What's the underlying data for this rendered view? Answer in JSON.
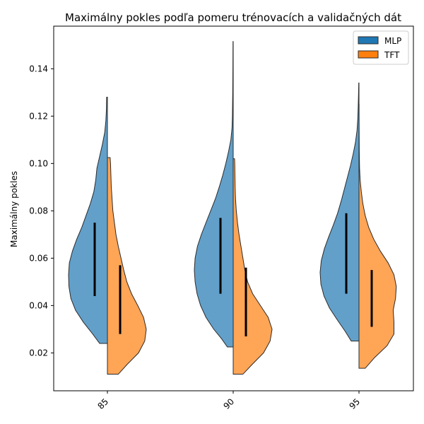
{
  "chart_data": {
    "type": "violin",
    "title": "Maximálny pokles podľa pomeru trénovacích a validačných dát",
    "xlabel": "",
    "ylabel": "Maximálny pokles",
    "categories": [
      "85",
      "90",
      "95"
    ],
    "ylim": [
      0.004,
      0.158
    ],
    "yticks": [
      0.02,
      0.04,
      0.06,
      0.08,
      0.1,
      0.12,
      0.14
    ],
    "ytick_labels": [
      "0.02",
      "0.04",
      "0.06",
      "0.08",
      "0.10",
      "0.12",
      "0.14"
    ],
    "legend": {
      "position": "top-right",
      "entries": [
        "MLP",
        "TFT"
      ]
    },
    "grid": false,
    "series": [
      {
        "name": "MLP",
        "color": "#1f77b4",
        "side": "left",
        "violins": [
          {
            "category": "85",
            "min": 0.024,
            "max": 0.128,
            "iqr": [
              0.044,
              0.075
            ],
            "profile": [
              [
                0.024,
                0.2
              ],
              [
                0.028,
                0.38
              ],
              [
                0.033,
                0.62
              ],
              [
                0.038,
                0.82
              ],
              [
                0.043,
                0.94
              ],
              [
                0.048,
                0.99
              ],
              [
                0.053,
                1.0
              ],
              [
                0.058,
                0.98
              ],
              [
                0.063,
                0.9
              ],
              [
                0.068,
                0.79
              ],
              [
                0.073,
                0.66
              ],
              [
                0.078,
                0.55
              ],
              [
                0.083,
                0.44
              ],
              [
                0.088,
                0.35
              ],
              [
                0.093,
                0.3
              ],
              [
                0.098,
                0.27
              ],
              [
                0.103,
                0.2
              ],
              [
                0.108,
                0.13
              ],
              [
                0.113,
                0.07
              ],
              [
                0.118,
                0.04
              ],
              [
                0.123,
                0.025
              ],
              [
                0.128,
                0.02
              ]
            ]
          },
          {
            "category": "90",
            "min": 0.0225,
            "max": 0.1515,
            "iqr": [
              0.045,
              0.077
            ],
            "profile": [
              [
                0.0225,
                0.15
              ],
              [
                0.026,
                0.3
              ],
              [
                0.03,
                0.5
              ],
              [
                0.035,
                0.7
              ],
              [
                0.04,
                0.84
              ],
              [
                0.045,
                0.93
              ],
              [
                0.05,
                0.98
              ],
              [
                0.055,
                1.0
              ],
              [
                0.06,
                0.98
              ],
              [
                0.065,
                0.92
              ],
              [
                0.07,
                0.82
              ],
              [
                0.075,
                0.7
              ],
              [
                0.08,
                0.58
              ],
              [
                0.085,
                0.46
              ],
              [
                0.09,
                0.36
              ],
              [
                0.095,
                0.27
              ],
              [
                0.1,
                0.19
              ],
              [
                0.105,
                0.12
              ],
              [
                0.11,
                0.06
              ],
              [
                0.115,
                0.03
              ],
              [
                0.12,
                0.02
              ],
              [
                0.13,
                0.012
              ],
              [
                0.14,
                0.008
              ],
              [
                0.1515,
                0.005
              ]
            ]
          },
          {
            "category": "95",
            "min": 0.025,
            "max": 0.134,
            "iqr": [
              0.045,
              0.079
            ],
            "profile": [
              [
                0.025,
                0.2
              ],
              [
                0.029,
                0.35
              ],
              [
                0.034,
                0.56
              ],
              [
                0.039,
                0.76
              ],
              [
                0.044,
                0.9
              ],
              [
                0.049,
                0.98
              ],
              [
                0.054,
                1.0
              ],
              [
                0.059,
                0.97
              ],
              [
                0.064,
                0.89
              ],
              [
                0.069,
                0.78
              ],
              [
                0.074,
                0.66
              ],
              [
                0.079,
                0.55
              ],
              [
                0.084,
                0.46
              ],
              [
                0.089,
                0.38
              ],
              [
                0.094,
                0.3
              ],
              [
                0.099,
                0.22
              ],
              [
                0.104,
                0.15
              ],
              [
                0.109,
                0.09
              ],
              [
                0.114,
                0.05
              ],
              [
                0.119,
                0.03
              ],
              [
                0.124,
                0.02
              ],
              [
                0.129,
                0.012
              ],
              [
                0.134,
                0.006
              ]
            ]
          }
        ]
      },
      {
        "name": "TFT",
        "color": "#ff7f0e",
        "side": "right",
        "violins": [
          {
            "category": "85",
            "min": 0.011,
            "max": 0.1025,
            "iqr": [
              0.028,
              0.057
            ],
            "profile": [
              [
                0.011,
                0.28
              ],
              [
                0.015,
                0.5
              ],
              [
                0.02,
                0.8
              ],
              [
                0.025,
                0.96
              ],
              [
                0.03,
                1.0
              ],
              [
                0.035,
                0.93
              ],
              [
                0.04,
                0.78
              ],
              [
                0.045,
                0.62
              ],
              [
                0.05,
                0.5
              ],
              [
                0.055,
                0.42
              ],
              [
                0.06,
                0.35
              ],
              [
                0.065,
                0.28
              ],
              [
                0.07,
                0.22
              ],
              [
                0.075,
                0.18
              ],
              [
                0.08,
                0.14
              ],
              [
                0.085,
                0.12
              ],
              [
                0.09,
                0.1
              ],
              [
                0.095,
                0.09
              ],
              [
                0.1,
                0.08
              ],
              [
                0.1025,
                0.07
              ]
            ]
          },
          {
            "category": "90",
            "min": 0.011,
            "max": 0.102,
            "iqr": [
              0.027,
              0.056
            ],
            "profile": [
              [
                0.011,
                0.25
              ],
              [
                0.015,
                0.48
              ],
              [
                0.02,
                0.78
              ],
              [
                0.025,
                0.95
              ],
              [
                0.03,
                1.0
              ],
              [
                0.035,
                0.9
              ],
              [
                0.04,
                0.7
              ],
              [
                0.045,
                0.5
              ],
              [
                0.05,
                0.37
              ],
              [
                0.055,
                0.3
              ],
              [
                0.06,
                0.25
              ],
              [
                0.065,
                0.2
              ],
              [
                0.07,
                0.15
              ],
              [
                0.075,
                0.11
              ],
              [
                0.08,
                0.08
              ],
              [
                0.085,
                0.06
              ],
              [
                0.09,
                0.05
              ],
              [
                0.095,
                0.045
              ],
              [
                0.1,
                0.04
              ],
              [
                0.102,
                0.035
              ]
            ]
          },
          {
            "category": "95",
            "min": 0.0135,
            "max": 0.125,
            "iqr": [
              0.031,
              0.055
            ],
            "profile": [
              [
                0.0135,
                0.16
              ],
              [
                0.018,
                0.4
              ],
              [
                0.023,
                0.72
              ],
              [
                0.028,
                0.9
              ],
              [
                0.033,
                0.9
              ],
              [
                0.038,
                0.88
              ],
              [
                0.043,
                0.94
              ],
              [
                0.048,
                0.96
              ],
              [
                0.053,
                0.9
              ],
              [
                0.058,
                0.75
              ],
              [
                0.063,
                0.55
              ],
              [
                0.068,
                0.38
              ],
              [
                0.073,
                0.25
              ],
              [
                0.078,
                0.16
              ],
              [
                0.083,
                0.1
              ],
              [
                0.088,
                0.06
              ],
              [
                0.093,
                0.03
              ],
              [
                0.098,
                0.015
              ],
              [
                0.105,
                0.008
              ],
              [
                0.115,
                0.004
              ],
              [
                0.125,
                0.002
              ]
            ]
          }
        ]
      }
    ]
  }
}
